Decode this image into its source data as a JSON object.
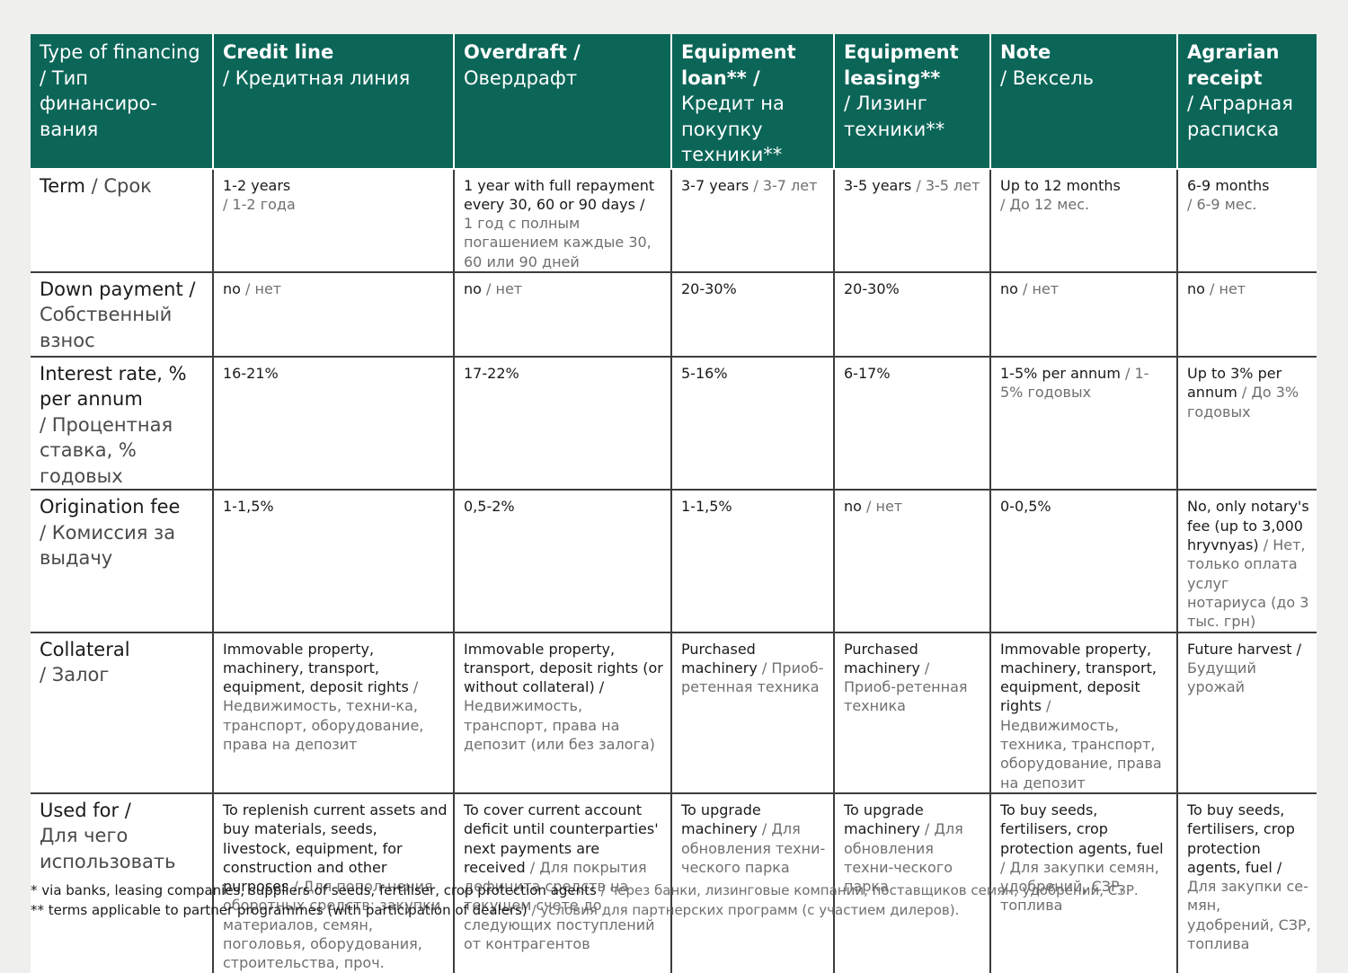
{
  "table": {
    "columns": [
      {
        "en": "Type of financing",
        "ru": "/ Тип финансиро-вания"
      },
      {
        "en": "Credit line",
        "ru": "/ Кредитная линия"
      },
      {
        "en": "Overdraft /",
        "ru": "Овердрафт"
      },
      {
        "en": "Equipment loan** /",
        "ru": "Кредит на покупку техники**"
      },
      {
        "en": "Equipment leasing**",
        "ru": "/ Лизинг техники**"
      },
      {
        "en": "Note",
        "ru": "/ Вексель"
      },
      {
        "en": "Agrarian receipt",
        "ru": "/ Аграрная расписка"
      }
    ],
    "rows": [
      {
        "label": {
          "en": "Term",
          "ru": " / Срок"
        },
        "cells": [
          {
            "en": "1-2 years",
            "ru": "/ 1-2 года"
          },
          {
            "en": "1 year with full repayment every 30, 60 or 90 days /",
            "ru": "1 год с полным погашением каждые 30, 60 или 90 дней"
          },
          {
            "en": "3-7 years",
            "ru": " / 3-7 лет"
          },
          {
            "en": "3-5 years",
            "ru": " / 3-5 лет"
          },
          {
            "en": "Up to 12 months",
            "ru": "/ До 12 мес."
          },
          {
            "en": "6-9 months",
            "ru": "/ 6-9 мес."
          }
        ]
      },
      {
        "label": {
          "en": "Down payment /",
          "ru": "Собственный взнос"
        },
        "cells": [
          {
            "en": "no",
            "ru": " / нет"
          },
          {
            "en": "no",
            "ru": " / нет"
          },
          {
            "en": "20-30%",
            "ru": ""
          },
          {
            "en": "20-30%",
            "ru": ""
          },
          {
            "en": "no",
            "ru": " / нет"
          },
          {
            "en": "no",
            "ru": " / нет"
          }
        ]
      },
      {
        "label": {
          "en": "Interest rate, % per annum",
          "ru": "/ Процентная ставка, % годовых"
        },
        "cells": [
          {
            "en": "16-21%",
            "ru": ""
          },
          {
            "en": "17-22%",
            "ru": ""
          },
          {
            "en": "5-16%",
            "ru": ""
          },
          {
            "en": "6-17%",
            "ru": ""
          },
          {
            "en": "1-5% per annum",
            "ru": " / 1-5% годовых"
          },
          {
            "en": "Up to 3% per annum",
            "ru": " / До 3% годовых"
          }
        ]
      },
      {
        "label": {
          "en": "Origination fee",
          "ru": "/ Комиссия за выдачу"
        },
        "cells": [
          {
            "en": "1-1,5%",
            "ru": ""
          },
          {
            "en": "0,5-2%",
            "ru": ""
          },
          {
            "en": "1-1,5%",
            "ru": ""
          },
          {
            "en": "no",
            "ru": " / нет"
          },
          {
            "en": "0-0,5%",
            "ru": ""
          },
          {
            "en": "No, only notary's fee (up to 3,000 hryvnyas)",
            "ru": " / Нет, только оплата услуг нотариуса (до 3 тыс. грн)"
          }
        ]
      },
      {
        "label": {
          "en": "Collateral",
          "ru": "/ Залог"
        },
        "cells": [
          {
            "en": "Immovable property, machinery, transport, equipment, deposit rights",
            "ru": " / Недвижимость, техни-ка, транспорт, оборудование, права на депозит"
          },
          {
            "en": "Immovable property, transport, deposit rights (or without collateral) /",
            "ru": "Недвижимость, транспорт, права на депозит (или без залога)"
          },
          {
            "en": "Purchased machinery",
            "ru": " / Приоб-ретенная техника"
          },
          {
            "en": "Purchased machinery",
            "ru": " / Приоб-ретенная техника"
          },
          {
            "en": "Immovable property, machinery, transport, equipment, deposit rights",
            "ru": " / Недвижимость, техника, транспорт, оборудование, права на депозит"
          },
          {
            "en": "Future harvest /",
            "ru": "Будущий урожай"
          }
        ]
      },
      {
        "label": {
          "en": "Used for /",
          "ru": "Для чего использовать"
        },
        "cells": [
          {
            "en": "To replenish current assets and buy materials, seeds, livestock, equipment, for construction and other purposes",
            "ru": " / Для попол-нения оборотных средств: закупки материалов, семян, поголовья, оборудования, строительства, проч."
          },
          {
            "en": "To cover current account deficit until counterparties' next payments are received",
            "ru": " / Для покрытия дефицита средств на текущем счете до следующих поступлений от контрагентов"
          },
          {
            "en": "To upgrade machinery",
            "ru": " / Для обновления техни-ческого парка"
          },
          {
            "en": "To upgrade machinery",
            "ru": " / Для обновления техни-ческого парка"
          },
          {
            "en": "To buy seeds, fertilisers, crop protection agents, fuel",
            "ru": " / Для закупки семян, удобрений, СЗР, топлива"
          },
          {
            "en": "To buy seeds, fertilisers, crop protection agents, fuel /",
            "ru": "Для закупки се-мян, удобрений, СЗР, топлива"
          }
        ]
      }
    ]
  },
  "footnotes": [
    {
      "en": "* via banks, leasing companies, suppliers of seeds, fertiliser, crop protection agents",
      "ru": " / через банки, лизинговые компании, поставщиков семян, удобрений, СЗР."
    },
    {
      "en": "** terms applicable to partner programmes (with participation of dealers)",
      "ru": " / условия для партнерских программ (с участием дилеров)."
    }
  ],
  "colors": {
    "header_bg": "#0b6658",
    "page_bg": "#efefee",
    "russian_text": "#6f6f6f"
  }
}
